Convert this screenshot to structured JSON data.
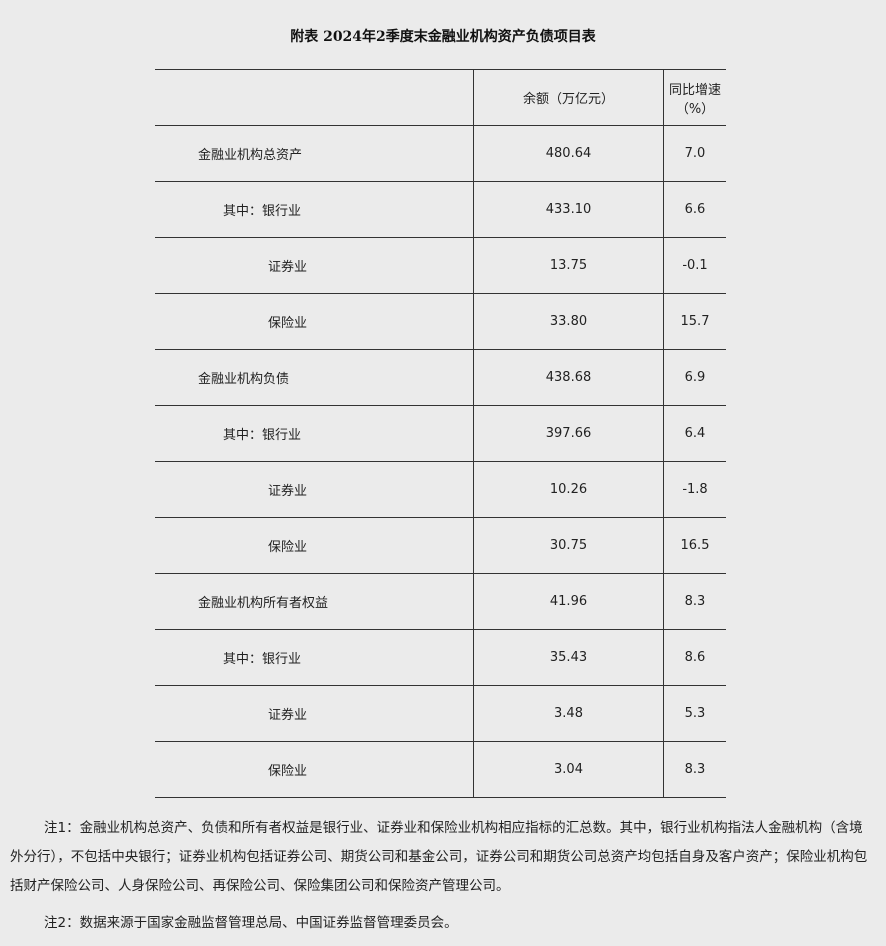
{
  "title": "附表  2024年2季度末金融业机构资产负债项目表",
  "table": {
    "headers": [
      "",
      "余额（万亿元）",
      "同比增速（%）"
    ],
    "rows": [
      {
        "label": "金融业机构总资产",
        "level": 0,
        "balance": "480.64",
        "growth": "7.0"
      },
      {
        "label": "其中：银行业",
        "level": 1,
        "balance": "433.10",
        "growth": "6.6"
      },
      {
        "label": "证券业",
        "level": 2,
        "balance": "13.75",
        "growth": "-0.1"
      },
      {
        "label": "保险业",
        "level": 2,
        "balance": "33.80",
        "growth": "15.7"
      },
      {
        "label": "金融业机构负债",
        "level": 0,
        "balance": "438.68",
        "growth": "6.9"
      },
      {
        "label": "其中：银行业",
        "level": 1,
        "balance": "397.66",
        "growth": "6.4"
      },
      {
        "label": "证券业",
        "level": 2,
        "balance": "10.26",
        "growth": "-1.8"
      },
      {
        "label": "保险业",
        "level": 2,
        "balance": "30.75",
        "growth": "16.5"
      },
      {
        "label": "金融业机构所有者权益",
        "level": 0,
        "balance": "41.96",
        "growth": "8.3"
      },
      {
        "label": "其中：银行业",
        "level": 1,
        "balance": "35.43",
        "growth": "8.6"
      },
      {
        "label": "证券业",
        "level": 2,
        "balance": "3.48",
        "growth": "5.3"
      },
      {
        "label": "保险业",
        "level": 2,
        "balance": "3.04",
        "growth": "8.3"
      }
    ]
  },
  "notes": [
    "注1：金融业机构总资产、负债和所有者权益是银行业、证券业和保险业机构相应指标的汇总数。其中，银行业机构指法人金融机构（含境外分行），不包括中央银行；证券业机构包括证券公司、期货公司和基金公司，证券公司和期货公司总资产均包括自身及客户资产；保险业机构包括财产保险公司、人身保险公司、再保险公司、保险集团公司和保险资产管理公司。",
    "注2：数据来源于国家金融监督管理总局、中国证券监督管理委员会。"
  ]
}
